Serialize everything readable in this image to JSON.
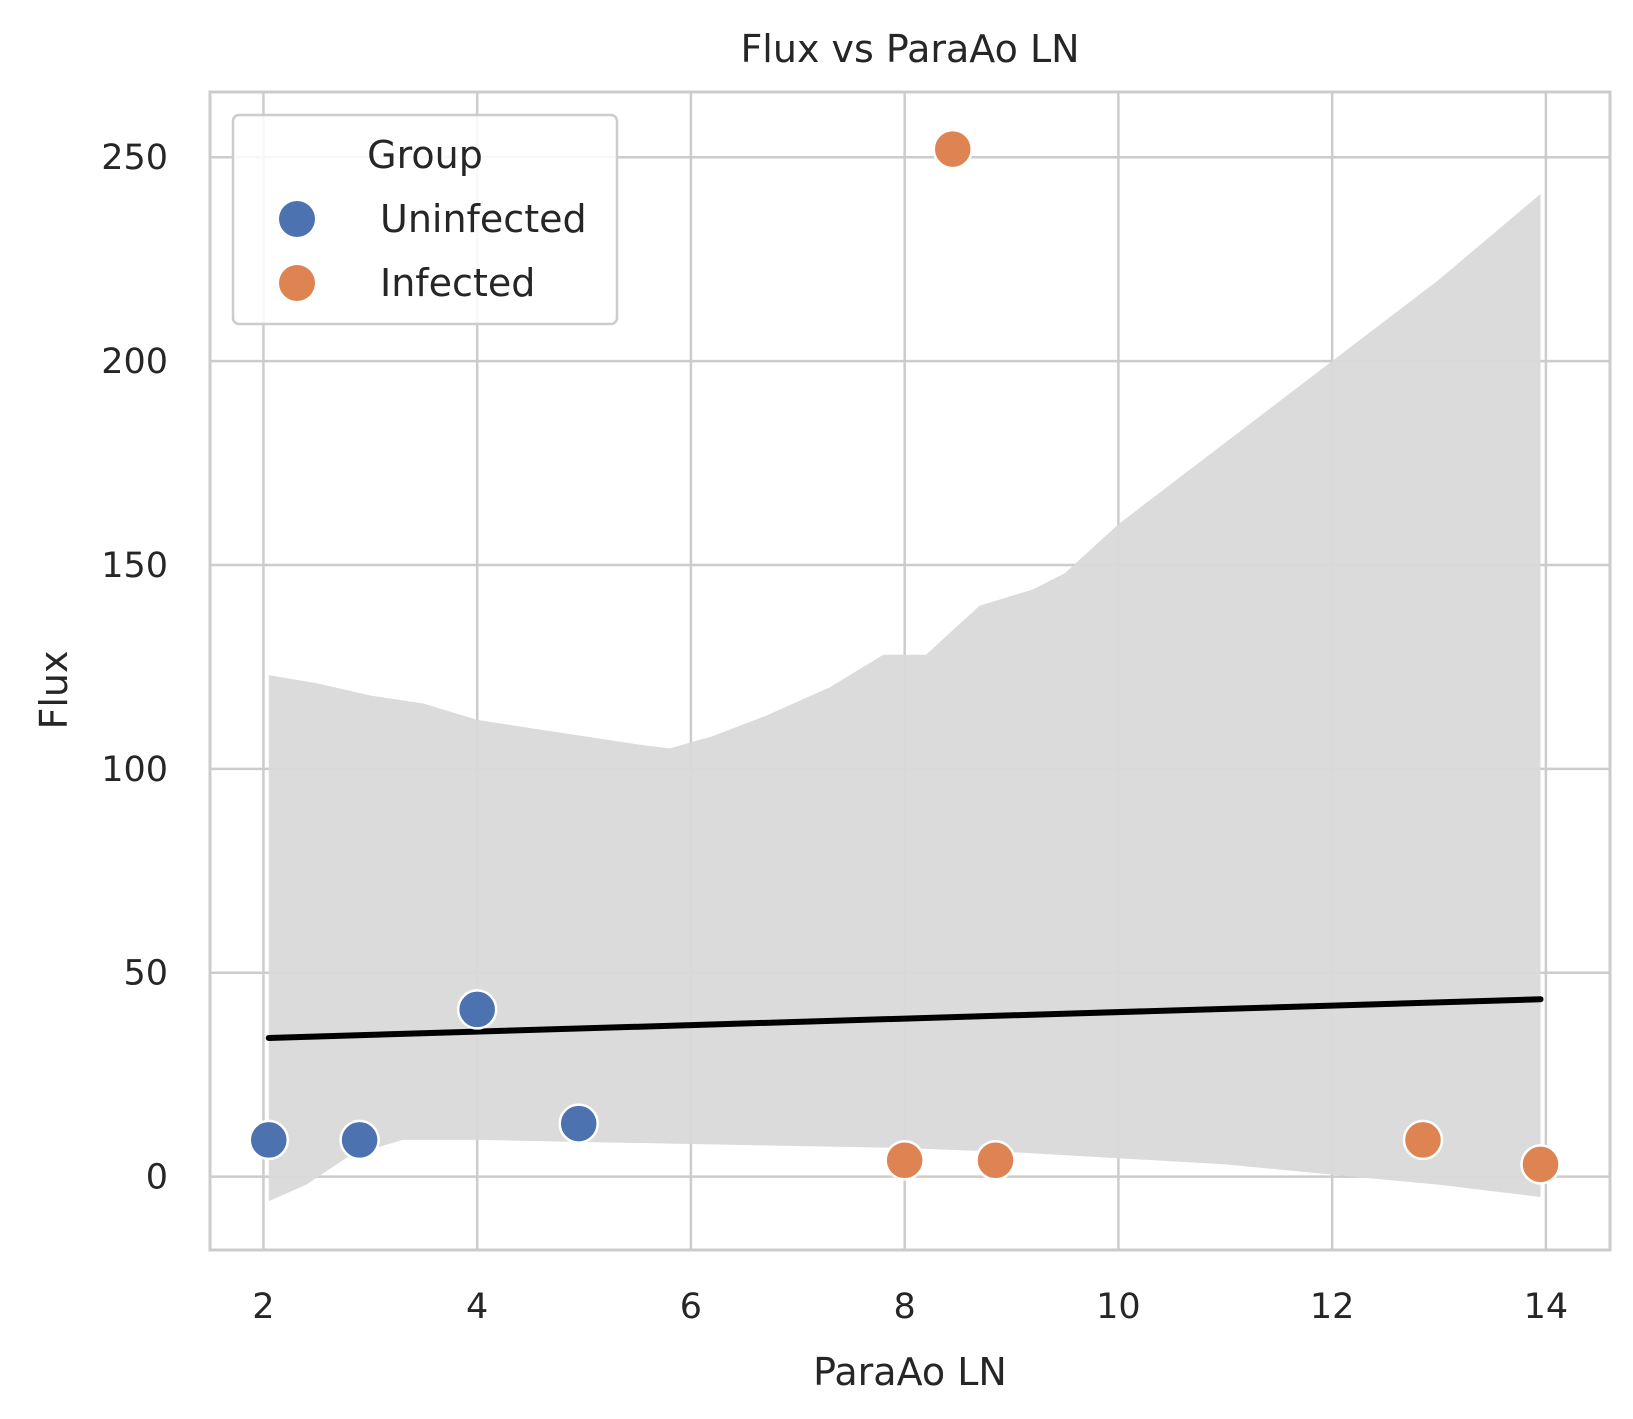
{
  "chart_data": {
    "type": "scatter",
    "title": "Flux vs ParaAo LN",
    "xlabel": "ParaAo LN",
    "ylabel": "Flux",
    "xlim": [
      1.5,
      14.6
    ],
    "ylim": [
      -18,
      266
    ],
    "xticks": [
      2,
      4,
      6,
      8,
      10,
      12,
      14
    ],
    "yticks": [
      0,
      50,
      100,
      150,
      200,
      250
    ],
    "grid": true,
    "legend": {
      "title": "Group",
      "placement": "top-left"
    },
    "series": [
      {
        "name": "Uninfected",
        "color": "#4c72b0",
        "points": [
          {
            "x": 2.05,
            "y": 9
          },
          {
            "x": 2.9,
            "y": 9
          },
          {
            "x": 4.0,
            "y": 41
          },
          {
            "x": 4.95,
            "y": 13
          }
        ]
      },
      {
        "name": "Infected",
        "color": "#dd8452",
        "points": [
          {
            "x": 8.0,
            "y": 4
          },
          {
            "x": 8.85,
            "y": 4
          },
          {
            "x": 8.45,
            "y": 252
          },
          {
            "x": 12.85,
            "y": 9
          },
          {
            "x": 13.95,
            "y": 3
          }
        ]
      }
    ],
    "regression_line": {
      "color": "#000000",
      "points": [
        {
          "x": 2.05,
          "y": 34
        },
        {
          "x": 13.95,
          "y": 43.5
        }
      ]
    },
    "confidence_band": {
      "color": "#d9d9d9",
      "upper": [
        {
          "x": 2.05,
          "y": 123
        },
        {
          "x": 2.5,
          "y": 121
        },
        {
          "x": 3.0,
          "y": 118
        },
        {
          "x": 3.5,
          "y": 116
        },
        {
          "x": 4.0,
          "y": 112
        },
        {
          "x": 4.5,
          "y": 110
        },
        {
          "x": 5.0,
          "y": 108
        },
        {
          "x": 5.5,
          "y": 106
        },
        {
          "x": 5.8,
          "y": 105
        },
        {
          "x": 6.2,
          "y": 108
        },
        {
          "x": 6.7,
          "y": 113
        },
        {
          "x": 7.3,
          "y": 120
        },
        {
          "x": 7.8,
          "y": 128
        },
        {
          "x": 8.2,
          "y": 128
        },
        {
          "x": 8.7,
          "y": 140
        },
        {
          "x": 9.2,
          "y": 144
        },
        {
          "x": 9.5,
          "y": 148
        },
        {
          "x": 10.0,
          "y": 160
        },
        {
          "x": 11.0,
          "y": 180
        },
        {
          "x": 12.0,
          "y": 200
        },
        {
          "x": 13.0,
          "y": 220
        },
        {
          "x": 13.95,
          "y": 241
        }
      ],
      "lower": [
        {
          "x": 2.05,
          "y": -6
        },
        {
          "x": 2.4,
          "y": -2
        },
        {
          "x": 2.8,
          "y": 5
        },
        {
          "x": 3.3,
          "y": 9
        },
        {
          "x": 4.0,
          "y": 9
        },
        {
          "x": 5.0,
          "y": 8.5
        },
        {
          "x": 6.0,
          "y": 8
        },
        {
          "x": 7.0,
          "y": 7.5
        },
        {
          "x": 8.0,
          "y": 7
        },
        {
          "x": 9.0,
          "y": 6
        },
        {
          "x": 10.0,
          "y": 4.5
        },
        {
          "x": 11.0,
          "y": 3
        },
        {
          "x": 12.0,
          "y": 0.5
        },
        {
          "x": 13.0,
          "y": -2
        },
        {
          "x": 13.95,
          "y": -5
        }
      ]
    }
  }
}
